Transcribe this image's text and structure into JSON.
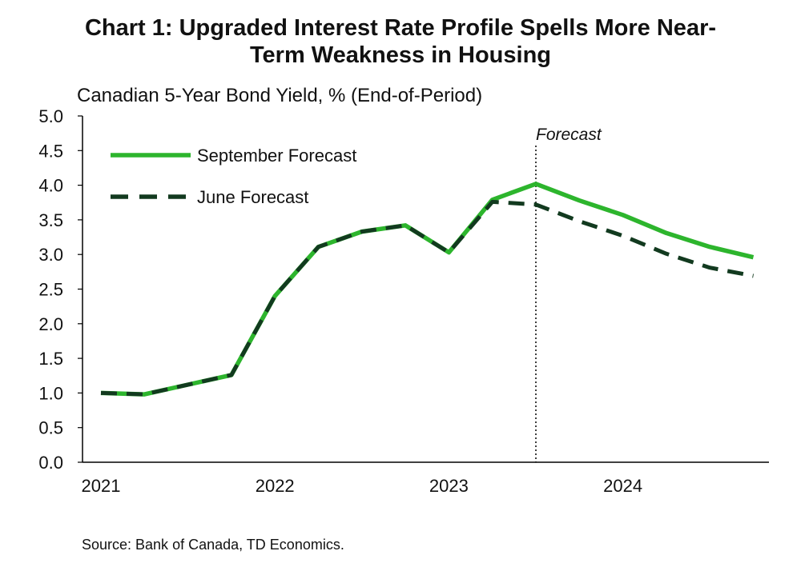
{
  "chart_data": {
    "type": "line",
    "title_lines": [
      "Chart 1: Upgraded Interest Rate Profile Spells More Near-",
      "Term Weakness in Housing"
    ],
    "subtitle": "Canadian 5-Year Bond Yield, % (End-of-Period)",
    "xlabel": "",
    "ylabel": "",
    "ylim": [
      0,
      5
    ],
    "yticks": [
      "0.0",
      "0.5",
      "1.0",
      "1.5",
      "2.0",
      "2.5",
      "3.0",
      "3.5",
      "4.0",
      "4.5",
      "5.0"
    ],
    "year_labels": [
      "2021",
      "2022",
      "2023",
      "2024"
    ],
    "x": [
      "2021Q1",
      "2021Q2",
      "2021Q3",
      "2021Q4",
      "2022Q1",
      "2022Q2",
      "2022Q3",
      "2022Q4",
      "2023Q1",
      "2023Q2",
      "2023Q3",
      "2023Q4",
      "2024Q1",
      "2024Q2",
      "2024Q3",
      "2024Q4"
    ],
    "series": [
      {
        "name": "September Forecast",
        "color": "#2db52d",
        "style": "solid",
        "values": [
          1.0,
          0.98,
          1.12,
          1.26,
          2.4,
          3.11,
          3.33,
          3.42,
          3.03,
          3.79,
          4.02,
          3.78,
          3.57,
          3.31,
          3.11,
          2.96
        ]
      },
      {
        "name": "June Forecast",
        "color": "#123a1f",
        "style": "dashed",
        "values": [
          1.0,
          0.98,
          1.12,
          1.26,
          2.4,
          3.11,
          3.33,
          3.42,
          3.03,
          3.76,
          3.72,
          3.48,
          3.27,
          3.01,
          2.81,
          2.69
        ]
      }
    ],
    "annotation": {
      "label": "Forecast",
      "at": "2023Q3"
    },
    "legend_position": "top-left"
  },
  "source": "Source: Bank of Canada, TD Economics."
}
